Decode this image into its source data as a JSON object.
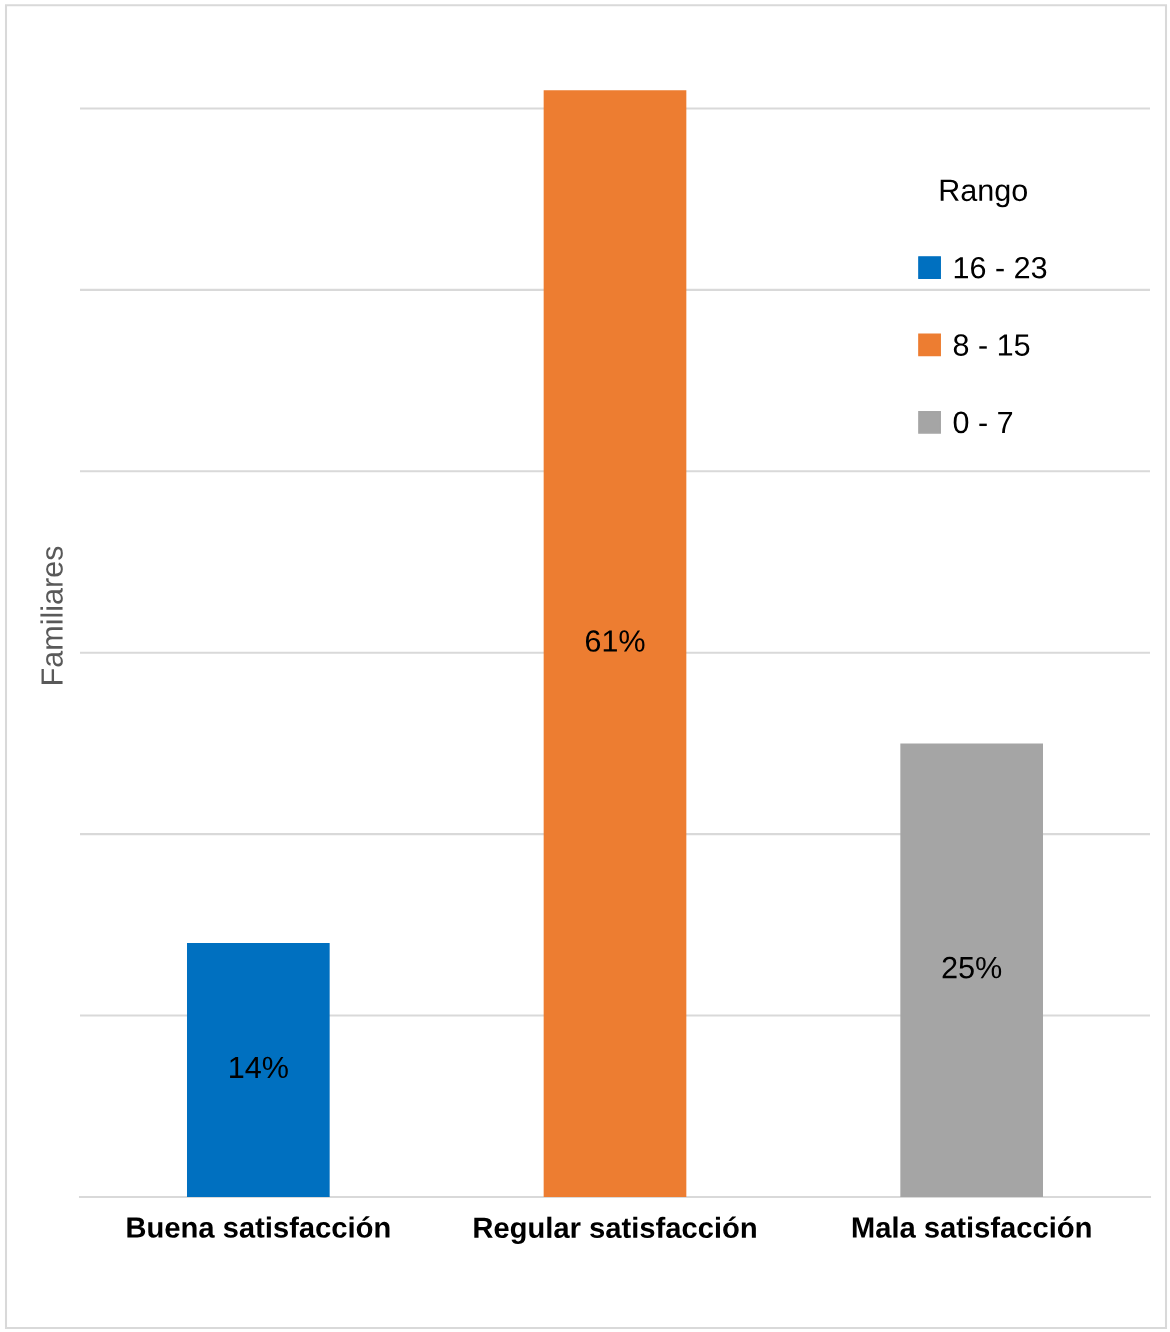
{
  "chart_data": {
    "type": "bar",
    "ylabel": "Familiares",
    "legend_title": "Rango",
    "categories": [
      "Buena satisfacción",
      "Regular satisfacción",
      "Mala satisfacción"
    ],
    "series": [
      {
        "name": "16 - 23",
        "color": "#0070c0",
        "values": [
          14,
          null,
          null
        ],
        "value_labels": [
          "14%",
          null,
          null
        ]
      },
      {
        "name": "8 - 15",
        "color": "#ed7d31",
        "values": [
          null,
          61,
          null
        ],
        "value_labels": [
          null,
          "61%",
          null
        ]
      },
      {
        "name": "0 - 7",
        "color": "#a5a5a5",
        "values": [
          null,
          null,
          25
        ],
        "value_labels": [
          null,
          null,
          "25%"
        ]
      }
    ],
    "grid": "y",
    "legend": "top right",
    "tick_labels": "x"
  }
}
